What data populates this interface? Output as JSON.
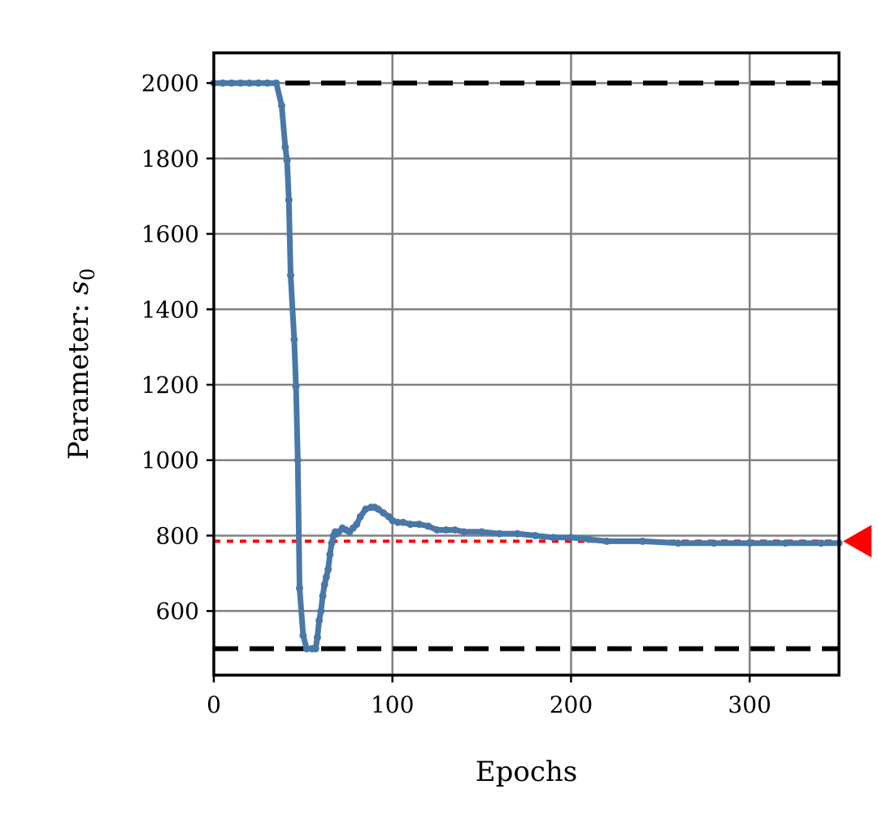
{
  "chart_data": {
    "type": "line",
    "xlabel": "Epochs",
    "ylabel": "Parameter: ",
    "ylabel_symbol": "s",
    "ylabel_subscript": "0",
    "xlim": [
      0,
      350
    ],
    "ylim": [
      430,
      2080
    ],
    "xticks": [
      0,
      100,
      200,
      300
    ],
    "yticks": [
      600,
      800,
      1000,
      1200,
      1400,
      1600,
      1800,
      2000
    ],
    "grid": true,
    "series": [
      {
        "color": "#4878a8",
        "x": [
          0,
          5,
          10,
          15,
          20,
          25,
          30,
          35,
          38,
          40,
          41,
          42,
          43,
          45,
          46,
          47,
          48,
          50,
          52,
          55,
          57,
          58,
          59,
          60,
          61,
          62,
          63,
          64,
          65,
          66,
          67,
          68,
          69,
          70,
          72,
          74,
          76,
          78,
          80,
          82,
          85,
          88,
          90,
          92,
          95,
          98,
          100,
          103,
          106,
          110,
          115,
          120,
          125,
          130,
          135,
          140,
          150,
          160,
          170,
          180,
          190,
          200,
          210,
          220,
          240,
          260,
          280,
          300,
          320,
          340,
          350
        ],
        "y": [
          2000,
          2000,
          2000,
          2000,
          2000,
          2000,
          2000,
          2000,
          1940,
          1830,
          1795,
          1690,
          1490,
          1320,
          1195,
          1000,
          660,
          535,
          500,
          500,
          500,
          530,
          575,
          600,
          640,
          670,
          690,
          710,
          750,
          780,
          800,
          810,
          805,
          810,
          820,
          815,
          810,
          820,
          830,
          850,
          870,
          875,
          875,
          870,
          860,
          850,
          840,
          835,
          835,
          830,
          830,
          825,
          815,
          815,
          815,
          810,
          810,
          805,
          805,
          800,
          795,
          795,
          790,
          785,
          785,
          780,
          780,
          780,
          780,
          780,
          780
        ]
      }
    ],
    "hlines": [
      {
        "y": 2000,
        "style": "dashed",
        "color": "#000000"
      },
      {
        "y": 500,
        "style": "dashed",
        "color": "#000000"
      },
      {
        "y": 785,
        "style": "dotted",
        "color": "#ff0000"
      }
    ],
    "marker": {
      "y": 785,
      "shape": "triangle-left",
      "color": "#ff0000"
    }
  }
}
